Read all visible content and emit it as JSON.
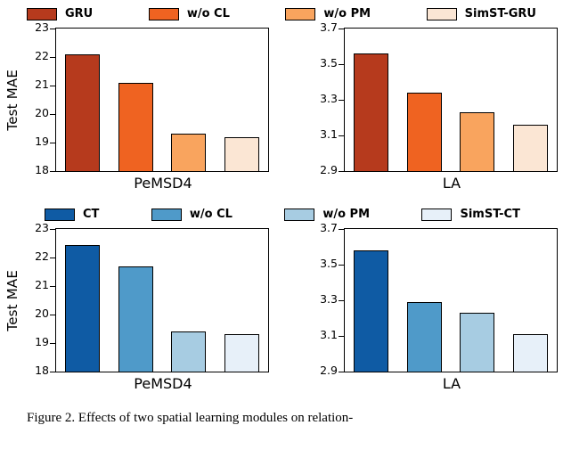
{
  "caption": "Figure 2. Effects of two spatial learning modules on relation-",
  "legends": [
    {
      "entries": [
        {
          "label": "GRU",
          "color": "#b63a1d"
        },
        {
          "label": "w/o CL",
          "color": "#ef6321"
        },
        {
          "label": "w/o PM",
          "color": "#f9a45e"
        },
        {
          "label": "SimST-GRU",
          "color": "#fbe6d4"
        }
      ]
    },
    {
      "entries": [
        {
          "label": "CT",
          "color": "#0f5ba4"
        },
        {
          "label": "w/o CL",
          "color": "#4f9ac9"
        },
        {
          "label": "w/o PM",
          "color": "#a7cce2"
        },
        {
          "label": "SimST-CT",
          "color": "#e7f0f9"
        }
      ]
    }
  ],
  "chart_data": [
    {
      "type": "bar",
      "categories": [
        "GRU",
        "w/o CL",
        "w/o PM",
        "SimST-GRU"
      ],
      "values": [
        22.1,
        21.1,
        19.3,
        19.2
      ],
      "title": "",
      "xlabel": "PeMSD4",
      "ylabel": "Test MAE",
      "ylim": [
        18,
        23
      ],
      "yticks": [
        18,
        19,
        20,
        21,
        22,
        23
      ],
      "grid": false,
      "legend_position": "top"
    },
    {
      "type": "bar",
      "categories": [
        "GRU",
        "w/o CL",
        "w/o PM",
        "SimST-GRU"
      ],
      "values": [
        3.56,
        3.34,
        3.23,
        3.16
      ],
      "title": "",
      "xlabel": "LA",
      "ylabel": "",
      "ylim": [
        2.9,
        3.7
      ],
      "yticks": [
        2.9,
        3.1,
        3.3,
        3.5,
        3.7
      ],
      "grid": false,
      "legend_position": "top"
    },
    {
      "type": "bar",
      "categories": [
        "CT",
        "w/o CL",
        "w/o PM",
        "SimST-CT"
      ],
      "values": [
        22.45,
        21.7,
        19.4,
        19.3
      ],
      "title": "",
      "xlabel": "PeMSD4",
      "ylabel": "Test MAE",
      "ylim": [
        18,
        23
      ],
      "yticks": [
        18,
        19,
        20,
        21,
        22,
        23
      ],
      "grid": false,
      "legend_position": "top"
    },
    {
      "type": "bar",
      "categories": [
        "CT",
        "w/o CL",
        "w/o PM",
        "SimST-CT"
      ],
      "values": [
        3.58,
        3.29,
        3.23,
        3.11
      ],
      "title": "",
      "xlabel": "LA",
      "ylabel": "",
      "ylim": [
        2.9,
        3.7
      ],
      "yticks": [
        2.9,
        3.1,
        3.3,
        3.5,
        3.7
      ],
      "grid": false,
      "legend_position": "top"
    }
  ]
}
